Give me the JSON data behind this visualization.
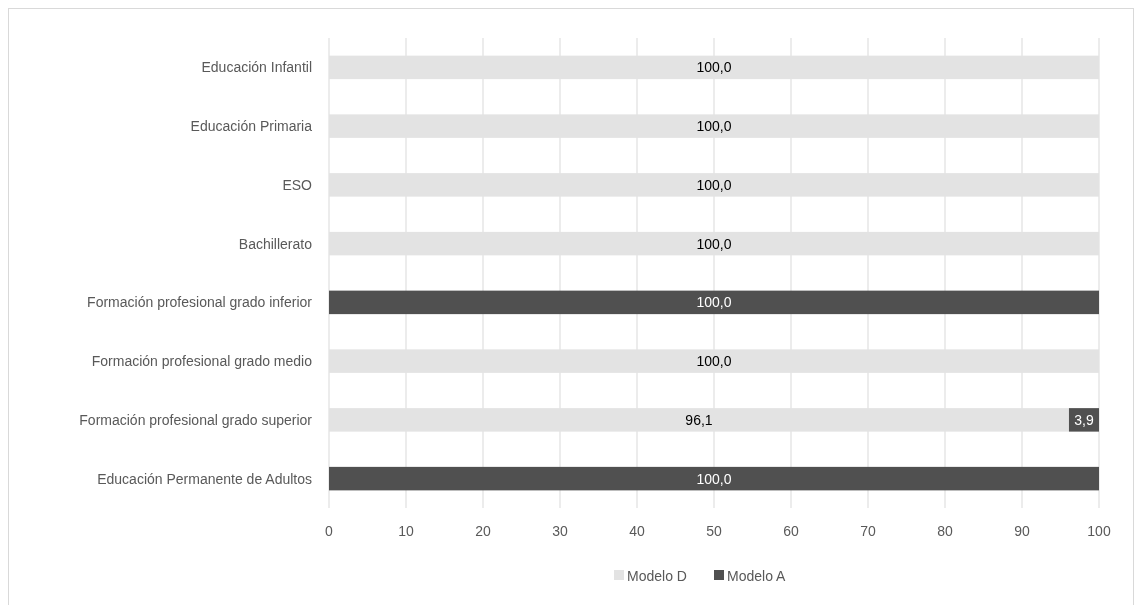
{
  "chart_data": {
    "type": "bar",
    "orientation": "horizontal",
    "stacked": true,
    "categories": [
      "Educación Infantil",
      "Educación Primaria",
      "ESO",
      "Bachillerato",
      "Formación profesional grado inferior",
      "Formación profesional grado medio",
      "Formación profesional grado superior",
      "Educación Permanente de Adultos"
    ],
    "series": [
      {
        "name": "Modelo D",
        "color": "#e3e3e3",
        "values": [
          100,
          100,
          100,
          100,
          null,
          100,
          96.1,
          null
        ],
        "value_labels": [
          "100,0",
          "100,0",
          "100,0",
          "100,0",
          null,
          "100,0",
          "96,1",
          null
        ]
      },
      {
        "name": "Modelo A",
        "color": "#505050",
        "values": [
          null,
          null,
          null,
          null,
          100,
          null,
          3.9,
          100
        ],
        "value_labels": [
          null,
          null,
          null,
          null,
          "100,0",
          null,
          "3,9",
          "100,0"
        ]
      }
    ],
    "xlim": [
      0,
      100
    ],
    "xticks": [
      0,
      10,
      20,
      30,
      40,
      50,
      60,
      70,
      80,
      90,
      100
    ],
    "grid": "x",
    "legend": "bottom"
  }
}
